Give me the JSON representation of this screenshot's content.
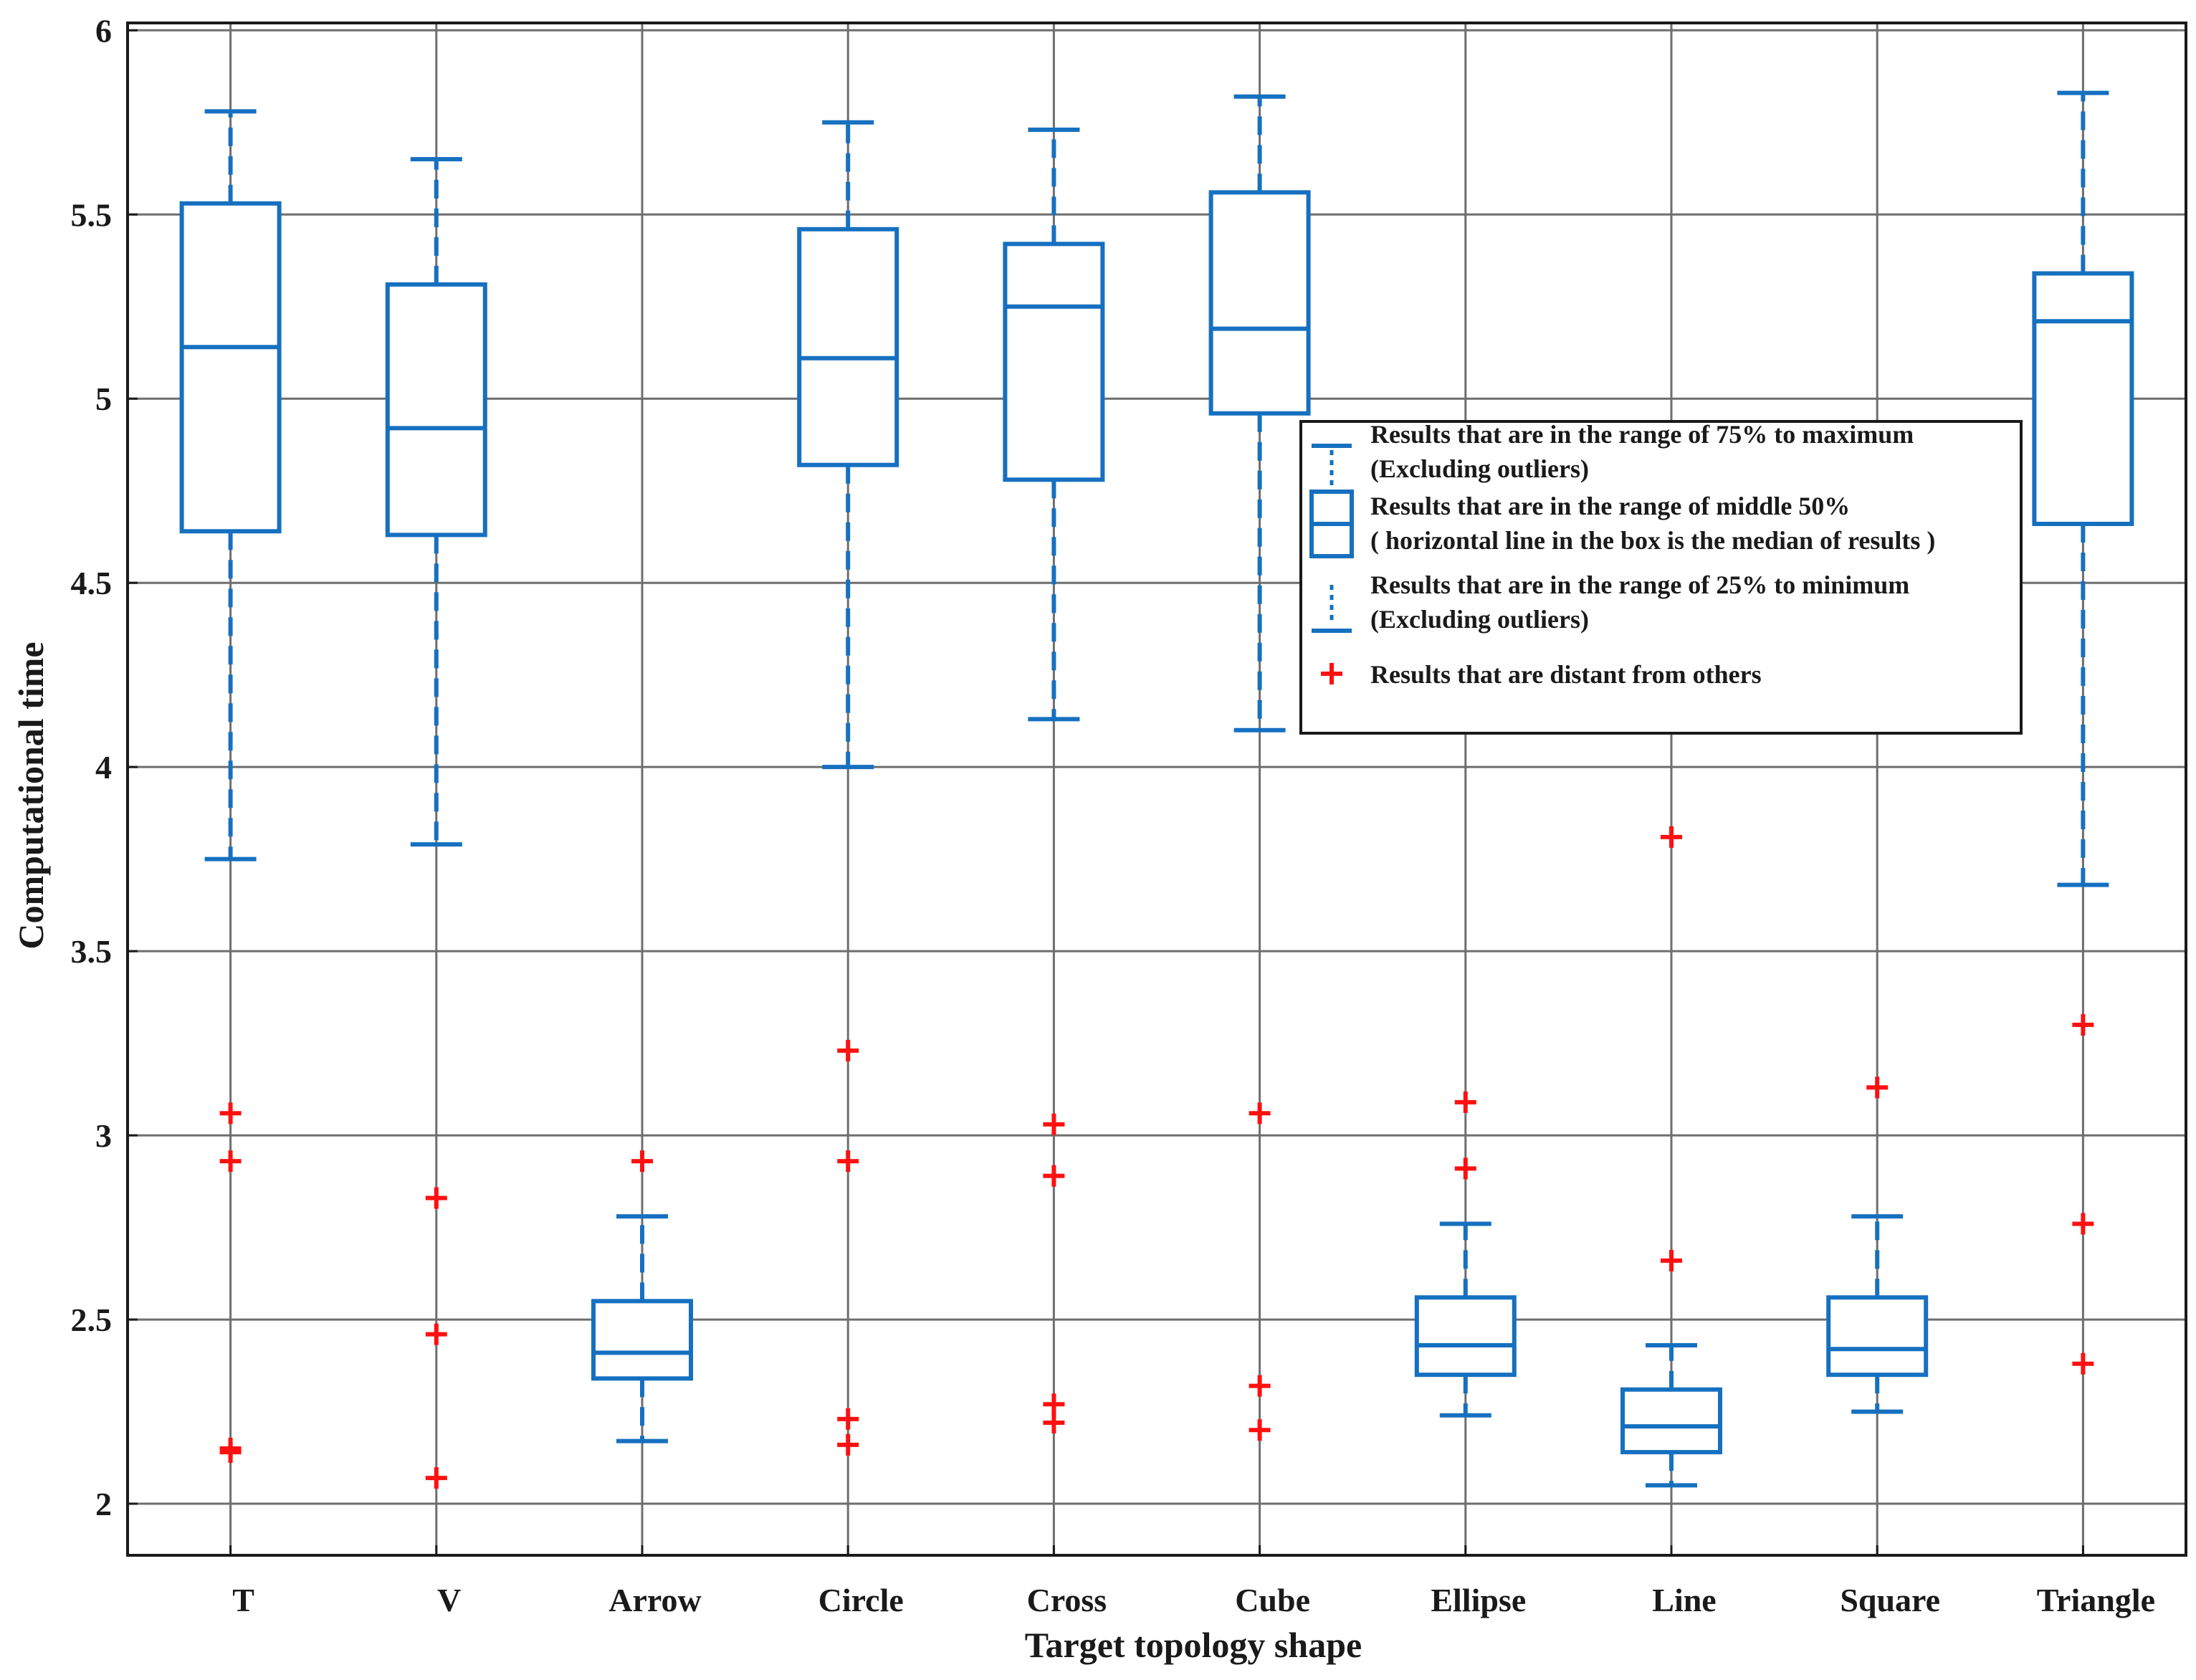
{
  "chart_data": {
    "type": "box",
    "title": "",
    "xlabel": "Target topology shape",
    "ylabel": "Computational time",
    "ylim": [
      1.86,
      6.02
    ],
    "yticks": [
      2,
      2.5,
      3,
      3.5,
      4,
      4.5,
      5,
      5.5,
      6
    ],
    "ytick_labels": [
      "2",
      "2.5",
      "3",
      "3.5",
      "4",
      "4.5",
      "5",
      "5.5",
      "6"
    ],
    "grid": true,
    "legend_position": "center-right",
    "colors": {
      "box": "#1670c0",
      "outlier": "#ff1010",
      "grid": "#6e6e6e",
      "axis": "#1a1a1a"
    },
    "categories": [
      "T",
      "V",
      "Arrow",
      "Circle",
      "Cross",
      "Cube",
      "Ellipse",
      "Line",
      "Square",
      "Triangle"
    ],
    "boxes": [
      {
        "label": "T",
        "min": 3.75,
        "q1": 4.64,
        "median": 5.14,
        "q3": 5.53,
        "max": 5.78,
        "outliers": [
          3.06,
          2.93,
          2.15,
          2.14
        ]
      },
      {
        "label": "V",
        "min": 3.79,
        "q1": 4.63,
        "median": 4.92,
        "q3": 5.31,
        "max": 5.65,
        "outliers": [
          2.83,
          2.46,
          2.07
        ]
      },
      {
        "label": "Arrow",
        "min": 2.17,
        "q1": 2.34,
        "median": 2.41,
        "q3": 2.55,
        "max": 2.78,
        "outliers": [
          2.93
        ]
      },
      {
        "label": "Circle",
        "min": 4.0,
        "q1": 4.82,
        "median": 5.11,
        "q3": 5.46,
        "max": 5.75,
        "outliers": [
          3.23,
          2.93,
          2.23,
          2.16
        ]
      },
      {
        "label": "Cross",
        "min": 4.13,
        "q1": 4.78,
        "median": 5.25,
        "q3": 5.42,
        "max": 5.73,
        "outliers": [
          3.03,
          2.89,
          2.27,
          2.22
        ]
      },
      {
        "label": "Cube",
        "min": 4.1,
        "q1": 4.96,
        "median": 5.19,
        "q3": 5.56,
        "max": 5.82,
        "outliers": [
          3.06,
          2.32,
          2.2
        ]
      },
      {
        "label": "Ellipse",
        "min": 2.24,
        "q1": 2.35,
        "median": 2.43,
        "q3": 2.56,
        "max": 2.76,
        "outliers": [
          3.09,
          2.91
        ]
      },
      {
        "label": "Line",
        "min": 2.05,
        "q1": 2.14,
        "median": 2.21,
        "q3": 2.31,
        "max": 2.43,
        "outliers": [
          3.81,
          2.66
        ]
      },
      {
        "label": "Square",
        "min": 2.25,
        "q1": 2.35,
        "median": 2.42,
        "q3": 2.56,
        "max": 2.78,
        "outliers": [
          3.13
        ]
      },
      {
        "label": "Triangle",
        "min": 3.68,
        "q1": 4.66,
        "median": 5.21,
        "q3": 5.34,
        "max": 5.83,
        "outliers": [
          3.3,
          2.76,
          2.38
        ]
      }
    ],
    "legend": [
      {
        "kind": "upper-whisker",
        "lines": [
          "Results that are in the range of 75% to maximum",
          "(Excluding outliers)"
        ]
      },
      {
        "kind": "box",
        "lines": [
          "Results that are in the range of middle 50%",
          "( horizontal line in the box is the median of results )"
        ]
      },
      {
        "kind": "lower-whisker",
        "lines": [
          "Results that are in the range of 25% to minimum",
          "(Excluding outliers)"
        ]
      },
      {
        "kind": "outlier",
        "lines": [
          "Results  that are distant from others"
        ]
      }
    ]
  }
}
